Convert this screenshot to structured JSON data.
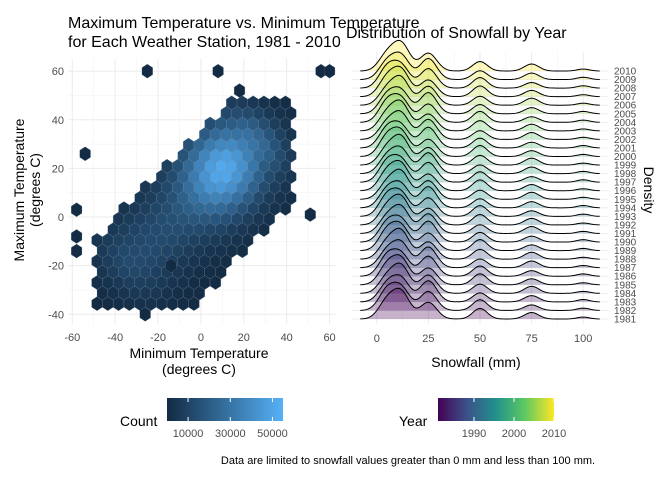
{
  "chart_data": [
    {
      "type": "hexbin",
      "title": "Maximum Temperature vs. Minimum Temperature",
      "subtitle": "for Each Weather Station, 1981 - 2010",
      "xlabel": "Minimum Temperature",
      "xlabel_sub": "(degrees C)",
      "ylabel": "Maximum Temperature",
      "ylabel_sub": "(degrees C)",
      "xlim": [
        -62,
        63
      ],
      "ylim": [
        -44,
        65
      ],
      "x_ticks": [
        -60,
        -40,
        -20,
        0,
        20,
        40,
        60
      ],
      "y_ticks": [
        -40,
        -20,
        0,
        20,
        40,
        60
      ],
      "grid": true,
      "legend": {
        "title": "Count",
        "position": "bottom",
        "ticks": [
          10000,
          30000,
          50000
        ],
        "tick_labels": [
          "10000",
          "30000",
          "50000"
        ],
        "range": [
          0,
          55000
        ],
        "colors": [
          "#132B43",
          "#56B1F7"
        ]
      },
      "hex_size": 2.9,
      "density_line": {
        "from": [
          -32,
          -18
        ],
        "to": [
          22,
          30
        ],
        "spread_x": 14,
        "spread_y": 11,
        "peak": 55000
      },
      "outliers": [
        [
          -25,
          60
        ],
        [
          8,
          60
        ],
        [
          56,
          60
        ],
        [
          60,
          60
        ],
        [
          18,
          52
        ],
        [
          -54,
          26
        ],
        [
          -58,
          3
        ],
        [
          -58,
          -8
        ],
        [
          -58,
          -14
        ],
        [
          51,
          1
        ],
        [
          -14,
          -20
        ],
        [
          -26,
          -40
        ]
      ]
    },
    {
      "type": "ridgeline",
      "title": "Distribution of Snowfall by Year",
      "xlabel": "Snowfall (mm)",
      "ylabel": "Density",
      "xlim": [
        -12,
        112
      ],
      "x_ticks": [
        0,
        25,
        50,
        75,
        100
      ],
      "years": [
        1981,
        1982,
        1983,
        1984,
        1985,
        1986,
        1987,
        1988,
        1989,
        1990,
        1991,
        1992,
        1993,
        1994,
        1995,
        1996,
        1997,
        1998,
        1999,
        2000,
        2001,
        2002,
        2003,
        2004,
        2005,
        2006,
        2007,
        2008,
        2009,
        2010
      ],
      "legend": {
        "title": "Year",
        "position": "bottom",
        "ticks": [
          1990,
          2000,
          2010
        ],
        "tick_labels": [
          "1990",
          "2000",
          "2010"
        ],
        "range": [
          1981,
          2010
        ],
        "colors": [
          "#440154",
          "#3b528b",
          "#21918c",
          "#5ec962",
          "#fde725"
        ]
      },
      "density_peaks": [
        {
          "x": 5,
          "width": 4,
          "height": 1.0
        },
        {
          "x": 12,
          "width": 4,
          "height": 1.3
        },
        {
          "x": 25,
          "width": 4,
          "height": 1.05
        },
        {
          "x": 50,
          "width": 3.5,
          "height": 0.55
        },
        {
          "x": 75,
          "width": 3.5,
          "height": 0.35
        },
        {
          "x": 100,
          "width": 3,
          "height": 0.12
        }
      ]
    }
  ],
  "caption": "Data are limited to snowfall values greater than 0 mm and less than 100 mm."
}
